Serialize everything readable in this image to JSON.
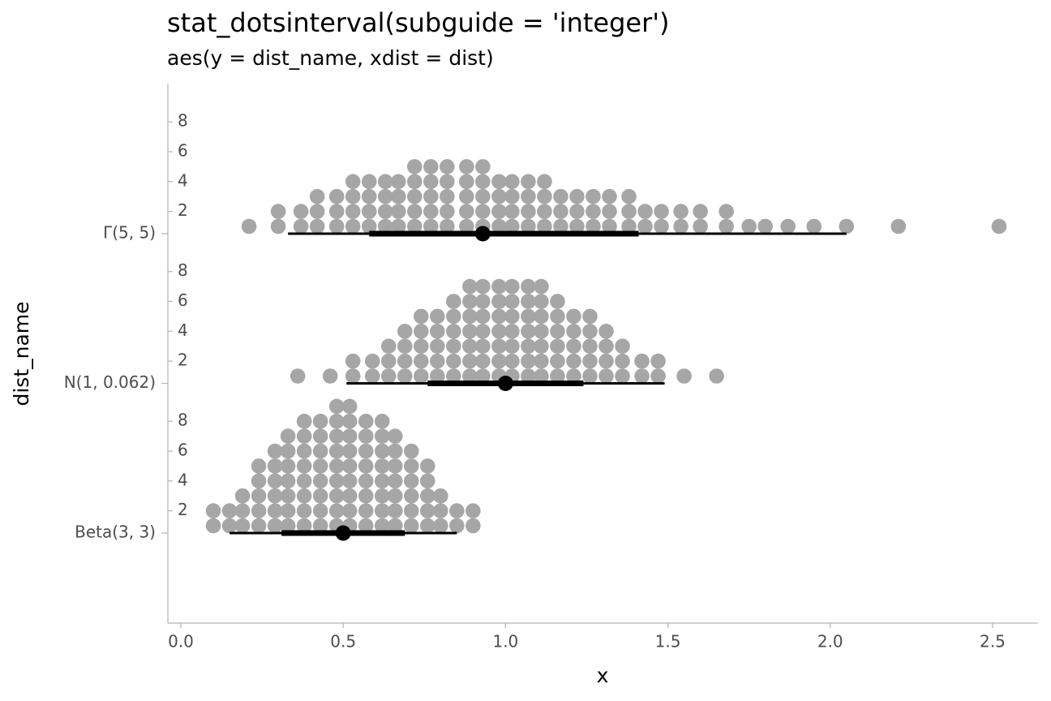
{
  "chart_data": {
    "type": "dotsinterval",
    "title": "stat_dotsinterval(subguide = 'integer')",
    "subtitle": "aes(y = dist_name, xdist = dist)",
    "x_label": "x",
    "y_label": "dist_name",
    "xlim": [
      -0.04,
      2.64
    ],
    "xticks": [
      {
        "value": 0,
        "label": "0.0"
      },
      0.5,
      {
        "value": 1,
        "label": "1.0"
      },
      1.5,
      {
        "value": 2,
        "label": "2.0"
      },
      2.5
    ],
    "count_ticks": [
      2,
      4,
      6,
      8
    ],
    "dot_color": "#a6a6a6",
    "interval_color": "#000000",
    "categories": [
      "Γ(5, 5)",
      "N(1, 0.062)",
      "Beta(3, 3)"
    ],
    "groups": [
      {
        "dots": {
          "x": [
            0.21,
            0.3,
            0.37,
            0.42,
            0.48,
            0.53,
            0.58,
            0.63,
            0.67,
            0.72,
            0.77,
            0.82,
            0.88,
            0.93,
            0.98,
            1.02,
            1.07,
            1.12,
            1.17,
            1.22,
            1.27,
            1.32,
            1.38,
            1.43,
            1.48,
            1.54,
            1.6,
            1.68,
            1.75,
            1.8,
            1.87,
            1.95,
            2.05,
            2.21,
            2.52
          ],
          "counts": [
            1,
            2,
            2,
            3,
            3,
            4,
            4,
            4,
            4,
            5,
            5,
            5,
            5,
            5,
            4,
            4,
            4,
            4,
            3,
            3,
            3,
            3,
            3,
            2,
            2,
            2,
            2,
            2,
            1,
            1,
            1,
            1,
            1,
            1,
            1
          ]
        },
        "point": 0.93,
        "interval_inner": [
          0.58,
          1.41
        ],
        "interval_outer": [
          0.33,
          2.05
        ]
      },
      {
        "dots": {
          "x": [
            0.36,
            0.46,
            0.53,
            0.59,
            0.64,
            0.69,
            0.74,
            0.79,
            0.84,
            0.89,
            0.93,
            0.98,
            1.02,
            1.07,
            1.11,
            1.16,
            1.21,
            1.26,
            1.31,
            1.36,
            1.42,
            1.47,
            1.55,
            1.65
          ],
          "counts": [
            1,
            1,
            2,
            2,
            3,
            4,
            5,
            5,
            6,
            7,
            7,
            7,
            7,
            7,
            7,
            6,
            5,
            5,
            4,
            3,
            2,
            2,
            1,
            1
          ]
        },
        "point": 1.0,
        "interval_inner": [
          0.76,
          1.24
        ],
        "interval_outer": [
          0.51,
          1.49
        ]
      },
      {
        "dots": {
          "x": [
            0.1,
            0.15,
            0.19,
            0.24,
            0.29,
            0.33,
            0.38,
            0.43,
            0.48,
            0.52,
            0.57,
            0.62,
            0.66,
            0.71,
            0.76,
            0.8,
            0.85,
            0.9
          ],
          "counts": [
            2,
            2,
            3,
            5,
            6,
            7,
            8,
            8,
            9,
            9,
            8,
            8,
            7,
            6,
            5,
            3,
            2,
            2
          ]
        },
        "point": 0.5,
        "interval_inner": [
          0.31,
          0.69
        ],
        "interval_outer": [
          0.15,
          0.85
        ]
      }
    ]
  }
}
